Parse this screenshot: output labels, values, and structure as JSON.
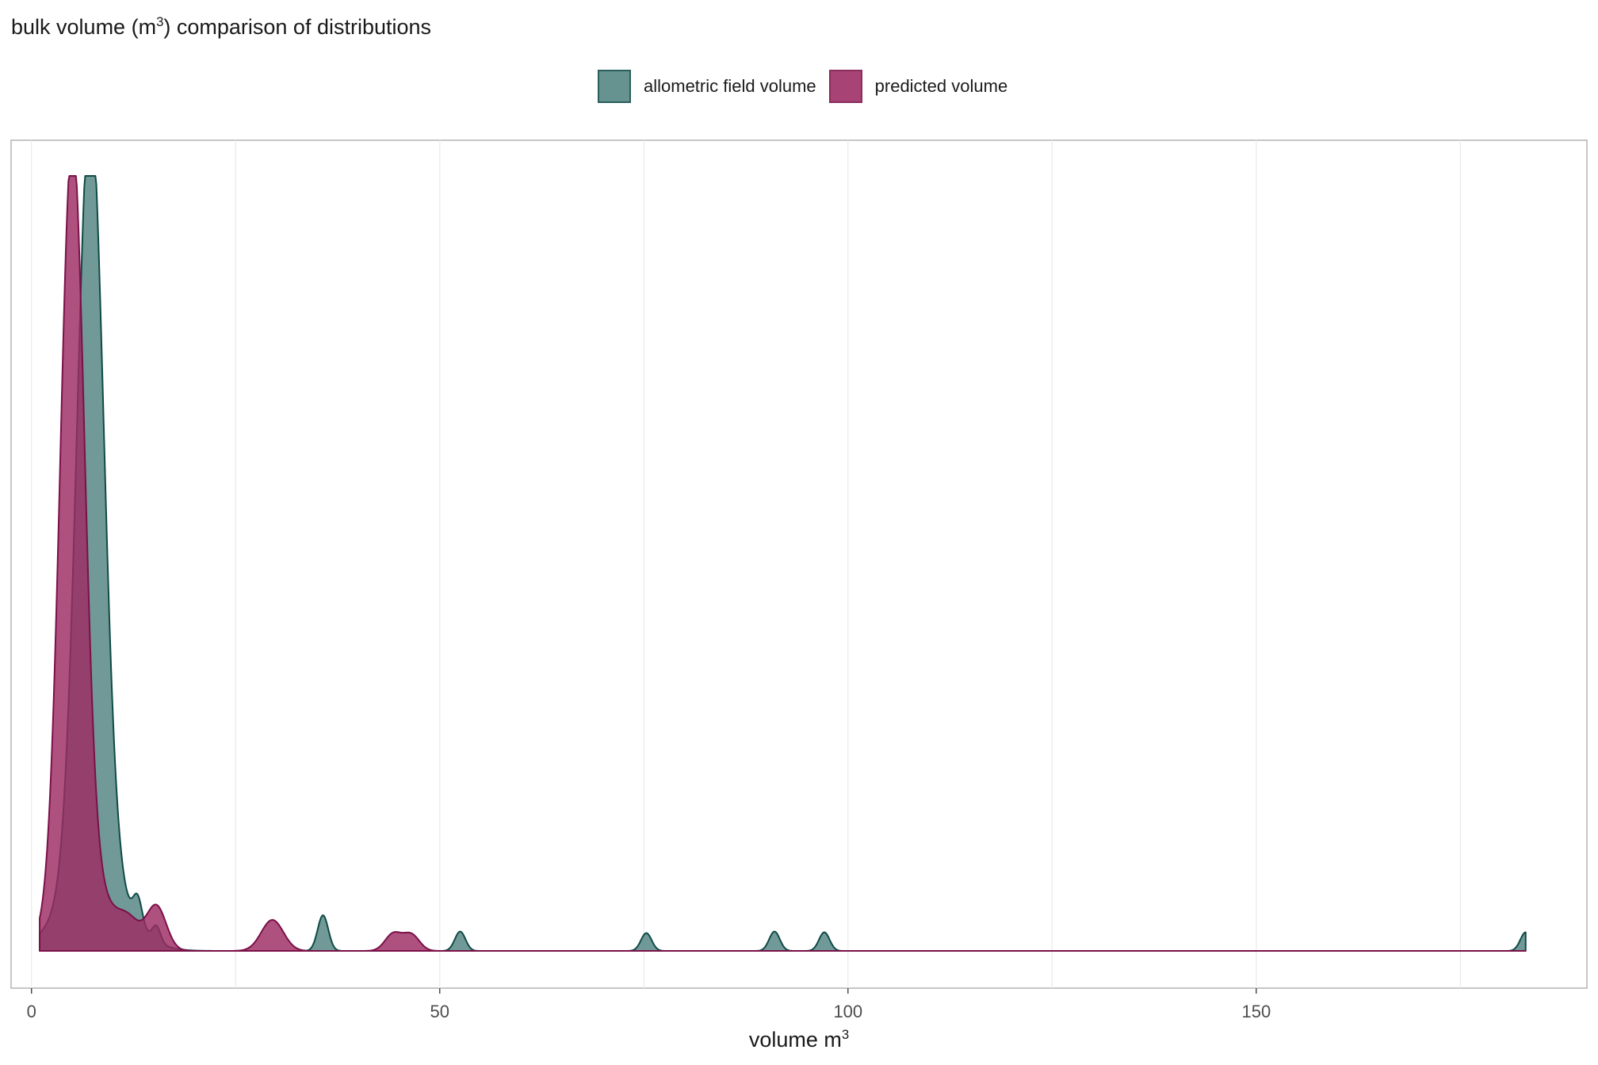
{
  "chart_data": {
    "type": "area",
    "title_prefix": "bulk volume (m",
    "title_sup": "3",
    "title_suffix": ") comparison of distributions",
    "xlabel_prefix": "volume m",
    "xlabel_sup": "3",
    "ylabel": "",
    "xlim": [
      -2.5,
      190.5
    ],
    "ylim": [
      0,
      1
    ],
    "x_ticks": [
      0,
      50,
      100,
      150
    ],
    "x_tick_labels": [
      "0",
      "50",
      "100",
      "150"
    ],
    "x_minor_ticks": [
      25,
      75,
      125,
      175
    ],
    "grid": "vertical only",
    "legend_position": "top",
    "x_range": [
      1,
      183
    ],
    "series": [
      {
        "name": "allometric field volume",
        "fill": "#528380",
        "stroke": "#0e4a46",
        "components": [
          {
            "center": 7.2,
            "height": 0.99,
            "width": 1.6
          },
          {
            "center": 7.6,
            "height": 0.1,
            "width": 3.8
          },
          {
            "center": 13.0,
            "height": 0.035,
            "width": 0.55
          },
          {
            "center": 15.3,
            "height": 0.02,
            "width": 0.5
          },
          {
            "center": 35.7,
            "height": 0.046,
            "width": 0.65
          },
          {
            "center": 52.5,
            "height": 0.025,
            "width": 0.65
          },
          {
            "center": 75.3,
            "height": 0.023,
            "width": 0.65
          },
          {
            "center": 91.0,
            "height": 0.025,
            "width": 0.65
          },
          {
            "center": 97.1,
            "height": 0.024,
            "width": 0.65
          },
          {
            "center": 183.0,
            "height": 0.024,
            "width": 0.65
          }
        ]
      },
      {
        "name": "predicted volume",
        "fill": "#9c2b63",
        "stroke": "#7a1048",
        "components": [
          {
            "center": 5.0,
            "height": 0.98,
            "width": 1.45
          },
          {
            "center": 6.8,
            "height": 0.08,
            "width": 3.5
          },
          {
            "center": 12.0,
            "height": 0.02,
            "width": 1.2
          },
          {
            "center": 15.3,
            "height": 0.055,
            "width": 1.2
          },
          {
            "center": 29.5,
            "height": 0.04,
            "width": 1.35
          },
          {
            "center": 44.3,
            "height": 0.022,
            "width": 1.0
          },
          {
            "center": 46.5,
            "height": 0.021,
            "width": 1.0
          }
        ]
      }
    ]
  }
}
